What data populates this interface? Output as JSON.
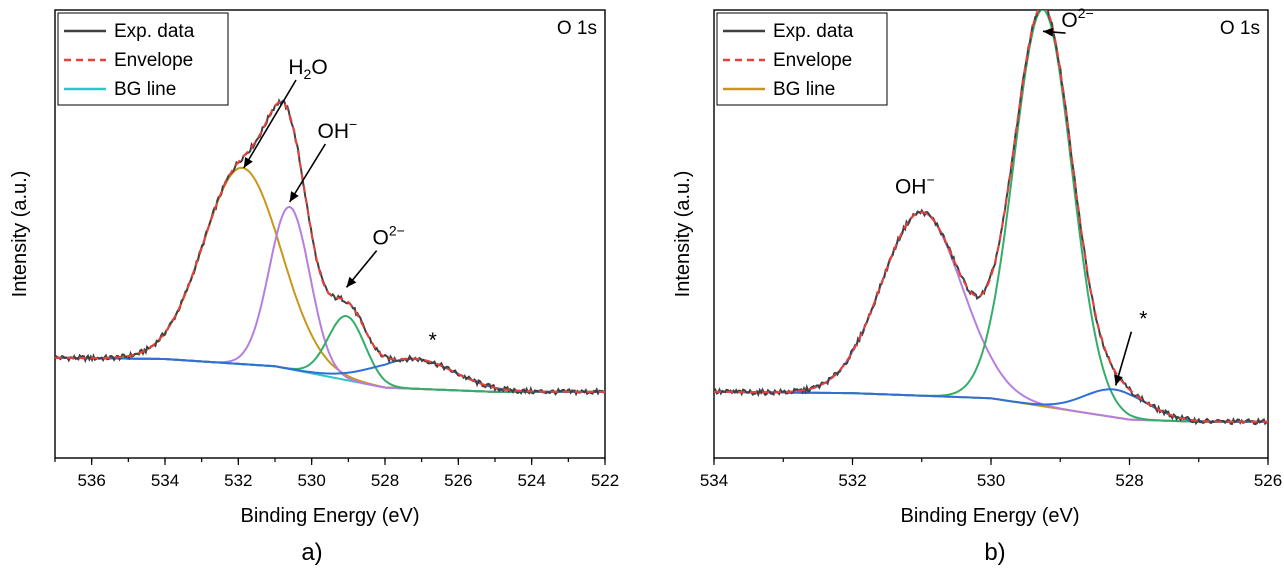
{
  "chart_data": [
    {
      "type": "line",
      "panel_label": "a)",
      "corner_label": "O 1s",
      "xlabel": "Binding Energy (eV)",
      "ylabel": "Intensity (a.u.)",
      "x_reversed": true,
      "xlim": [
        537,
        522
      ],
      "x_ticks": [
        536,
        534,
        532,
        530,
        528,
        526,
        524,
        522
      ],
      "ylim": [
        0,
        1.05
      ],
      "legend": {
        "position": "top-left"
      },
      "legend_entries": [
        {
          "name": "Exp. data",
          "color": "#404040",
          "dash": "solid"
        },
        {
          "name": "Envelope",
          "color": "#e8403a",
          "dash": "dashed"
        },
        {
          "name": "BG line",
          "color": "#2fc6c9",
          "dash": "solid"
        }
      ],
      "background": {
        "x": [
          537,
          534,
          531,
          528,
          525,
          522
        ],
        "y": [
          0.235,
          0.232,
          0.215,
          0.165,
          0.155,
          0.155
        ]
      },
      "components": [
        {
          "label": "H2O",
          "color": "#c9971a",
          "center": 531.9,
          "height": 0.46,
          "sigma": 1.05
        },
        {
          "label": "OH-",
          "color": "#b57fe0",
          "center": 530.6,
          "height": 0.38,
          "sigma": 0.55
        },
        {
          "label": "O2-",
          "color": "#35ad6a",
          "center": 529.05,
          "height": 0.15,
          "sigma": 0.5
        },
        {
          "label": "*",
          "color": "#2f6fd6",
          "center": 527.2,
          "height": 0.07,
          "sigma": 1.1
        }
      ],
      "annotations": [
        {
          "text": "H",
          "sub": "2",
          "tail": "O",
          "x": 530.1,
          "y": 0.9,
          "arrow_to": [
            531.85,
            0.68
          ]
        },
        {
          "text": "OH",
          "sup": "−",
          "x": 529.3,
          "y": 0.75,
          "arrow_to": [
            530.6,
            0.6
          ]
        },
        {
          "text": "O",
          "sup": "2−",
          "x": 527.9,
          "y": 0.5,
          "arrow_to": [
            529.05,
            0.4
          ]
        },
        {
          "text": "*",
          "x": 526.7,
          "y": 0.26
        }
      ]
    },
    {
      "type": "line",
      "panel_label": "b)",
      "corner_label": "O 1s",
      "xlabel": "Binding Energy (eV)",
      "ylabel": "Intensity (a.u.)",
      "x_reversed": true,
      "xlim": [
        534,
        526
      ],
      "x_ticks": [
        534,
        532,
        530,
        528,
        526
      ],
      "ylim": [
        0,
        1.05
      ],
      "legend": {
        "position": "top-left"
      },
      "legend_entries": [
        {
          "name": "Exp. data",
          "color": "#404040",
          "dash": "solid"
        },
        {
          "name": "Envelope",
          "color": "#e8403a",
          "dash": "dashed"
        },
        {
          "name": "BG line",
          "color": "#c9971a",
          "dash": "solid"
        }
      ],
      "background": {
        "x": [
          534,
          532,
          530,
          528,
          527,
          526
        ],
        "y": [
          0.155,
          0.152,
          0.14,
          0.09,
          0.085,
          0.085
        ]
      },
      "components": [
        {
          "label": "OH-",
          "color": "#b57fe0",
          "center": 531.0,
          "height": 0.43,
          "sigma": 0.58
        },
        {
          "label": "O2-",
          "color": "#35ad6a",
          "center": 529.25,
          "height": 0.93,
          "sigma": 0.42
        },
        {
          "label": "*",
          "color": "#2f6fd6",
          "center": 528.2,
          "height": 0.065,
          "sigma": 0.45
        }
      ],
      "annotations": [
        {
          "text": "OH",
          "sup": "−",
          "x": 531.1,
          "y": 0.62
        },
        {
          "text": "O",
          "sup": "2−",
          "x": 528.75,
          "y": 1.01,
          "arrow_to": [
            529.25,
            1.0
          ]
        },
        {
          "text": "*",
          "x": 527.8,
          "y": 0.31,
          "arrow_to": [
            528.2,
            0.17
          ]
        }
      ]
    }
  ]
}
